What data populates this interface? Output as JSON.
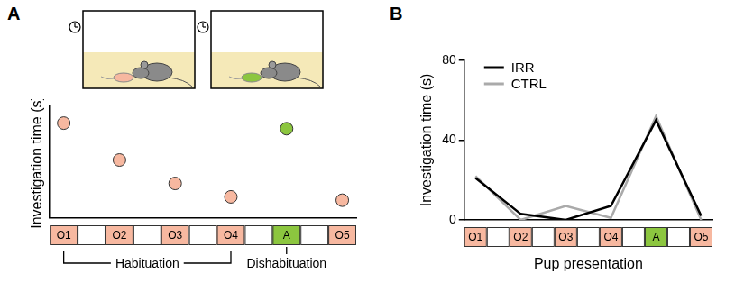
{
  "chart_data": [
    {
      "type": "scatter",
      "panel": "A",
      "y_label": "Investigation time (s)",
      "categories": [
        "O1",
        "O2",
        "O3",
        "O4",
        "A",
        "O5"
      ],
      "values": [
        85,
        52,
        31,
        19,
        80,
        16
      ],
      "colors": [
        "#f7b8a0",
        "#f7b8a0",
        "#f7b8a0",
        "#f7b8a0",
        "#8cc63f",
        "#f7b8a0"
      ],
      "ylim": [
        0,
        100
      ],
      "tick_labels": false,
      "grid": false,
      "annotations": [
        {
          "text": "Habituation",
          "from": "O1",
          "to": "O4"
        },
        {
          "text": "Dishabituation",
          "at": "A"
        }
      ]
    },
    {
      "type": "line",
      "panel": "B",
      "x_label": "Pup presentation",
      "y_label": "Investigation time (s)",
      "categories": [
        "O1",
        "O2",
        "O3",
        "O4",
        "A",
        "O5"
      ],
      "colors": [
        "#f7b8a0",
        "#f7b8a0",
        "#f7b8a0",
        "#f7b8a0",
        "#8cc63f",
        "#f7b8a0"
      ],
      "series": [
        {
          "name": "IRR",
          "color": "#000000",
          "values": [
            21,
            3,
            0,
            7,
            50,
            2
          ]
        },
        {
          "name": "CTRL",
          "color": "#aaaaaa",
          "values": [
            22,
            0,
            7,
            1,
            52,
            0
          ]
        }
      ],
      "ylim": [
        0,
        80
      ],
      "yticks": [
        0,
        40,
        80
      ],
      "grid": false,
      "legend": "upper left"
    }
  ]
}
